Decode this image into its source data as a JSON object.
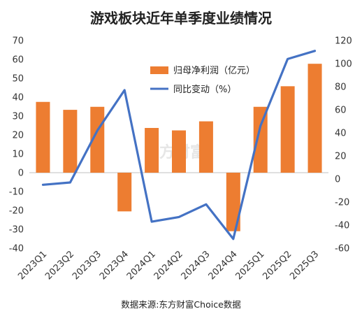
{
  "chart_data": {
    "type": "bar+line",
    "title": "游戏板块近年单季度业绩情况",
    "source": "数据来源:东方财富Choice数据",
    "watermark": "东方财富",
    "categories": [
      "2023Q1",
      "2023Q2",
      "2023Q3",
      "2023Q4",
      "2024Q1",
      "2024Q2",
      "2024Q3",
      "2024Q4",
      "2025Q1",
      "2025Q2",
      "2025Q3"
    ],
    "series": [
      {
        "name": "归母净利润（亿元）",
        "type": "bar",
        "axis": "left",
        "color": "#ED7D31",
        "values": [
          37.5,
          33.3,
          34.9,
          -20.5,
          23.7,
          22.4,
          27.2,
          -31.0,
          34.9,
          45.8,
          57.7
        ]
      },
      {
        "name": "同比变动（%）",
        "type": "line",
        "axis": "right",
        "color": "#4472C4",
        "values": [
          -5,
          -3,
          42,
          77,
          -37,
          -33,
          -22,
          -52,
          46,
          104,
          111
        ]
      }
    ],
    "yleft": {
      "min": -40,
      "max": 70,
      "step": 10,
      "ticks": [
        "-40",
        "-30",
        "-20",
        "-10",
        "0",
        "10",
        "20",
        "30",
        "40",
        "50",
        "60",
        "70"
      ]
    },
    "yright": {
      "min": -60,
      "max": 120,
      "step": 20,
      "ticks": [
        "-60",
        "-40",
        "-20",
        "0",
        "20",
        "40",
        "60",
        "80",
        "100",
        "120"
      ]
    },
    "legend_position": "upper-center",
    "grid": false
  }
}
